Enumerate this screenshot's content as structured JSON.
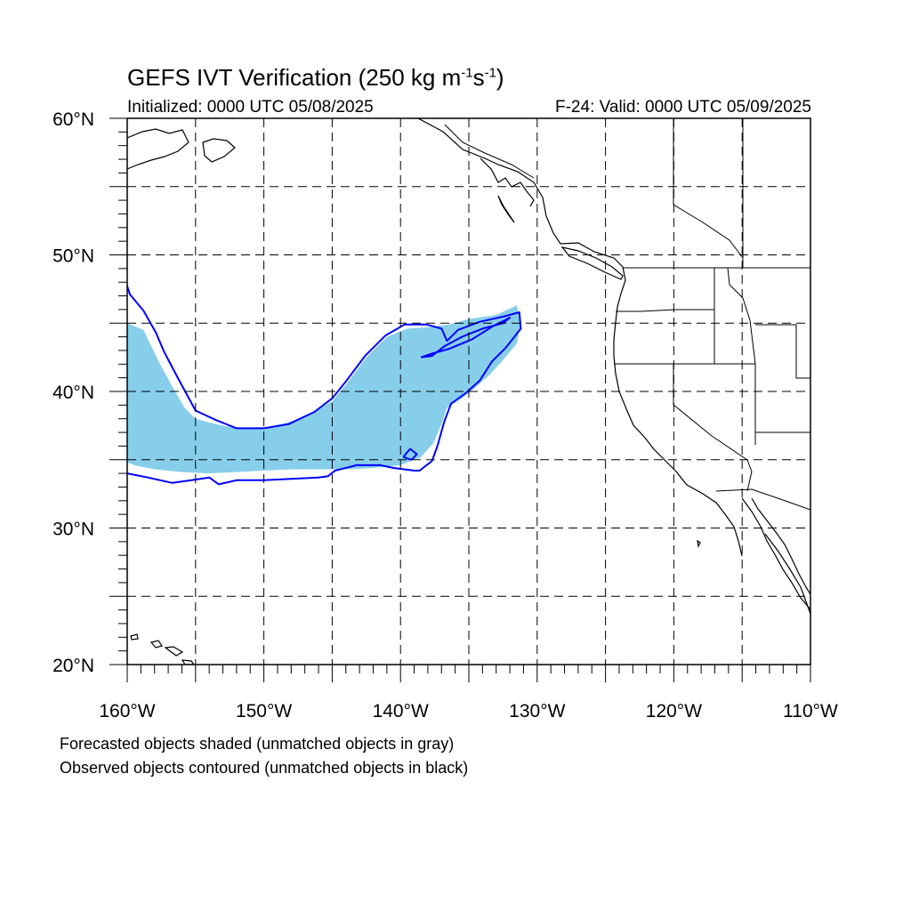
{
  "title": {
    "prefix": "GEFS IVT Verification (250 kg m",
    "exp1": "-1",
    "mid": "s",
    "exp2": "-1",
    "suffix": ")"
  },
  "initialized": "Initialized: 0000 UTC 05/08/2025",
  "valid": "F-24: Valid: 0000 UTC 05/09/2025",
  "notes": {
    "forecast": "Forecasted objects shaded (unmatched objects in gray)",
    "observed": "Observed objects contoured (unmatched objects in black)"
  },
  "map": {
    "lon_range": [
      -160,
      -110
    ],
    "lat_range": [
      20,
      60
    ],
    "lon_ticks": [
      "160°W",
      "150°W",
      "140°W",
      "130°W",
      "120°W",
      "110°W"
    ],
    "lat_ticks": [
      "20°N",
      "30°N",
      "40°N",
      "50°N",
      "60°N"
    ],
    "colors": {
      "forecast_fill": "#87ceeb",
      "observed_contour": "#0000ff",
      "coastline": "#000000",
      "grid": "#000000"
    }
  },
  "forecast_object": {
    "lons": [
      -160,
      -158.8,
      -157.6,
      -156.5,
      -155.8,
      -155,
      -153.5,
      -152,
      -150,
      -148,
      -146.3,
      -145,
      -144,
      -142.5,
      -141,
      -139.5,
      -138,
      -136.5,
      -135,
      -133,
      -131.5,
      -131.2,
      -131.5,
      -132.5,
      -133.5,
      -134.5,
      -135.5,
      -136.6,
      -137,
      -137.6,
      -138.5,
      -140,
      -142,
      -144,
      -146,
      -148,
      -150,
      -152,
      -154,
      -156,
      -158,
      -159.5,
      -160
    ],
    "lats": [
      45,
      44.5,
      42,
      40,
      38.8,
      38,
      37.6,
      37.3,
      37.3,
      37.8,
      38.5,
      39.3,
      40.5,
      42.5,
      44,
      44.6,
      44.7,
      44.9,
      45.3,
      45.6,
      46.3,
      45,
      43.5,
      42.3,
      41.2,
      40.3,
      39.5,
      38.8,
      37.6,
      36.2,
      35.2,
      34.6,
      34.4,
      34.3,
      34.3,
      34.3,
      34.2,
      34.1,
      34.0,
      34.1,
      34.3,
      34.6,
      34.8
    ]
  },
  "observed_contours": [
    {
      "name": "main",
      "lons": [
        -160,
        -159.8,
        -158.8,
        -157.9,
        -157.3,
        -156.3,
        -155,
        -153.5,
        -152,
        -150,
        -148.2,
        -146.3,
        -145,
        -144.1,
        -142.6,
        -141.1,
        -139.7,
        -138.1,
        -137,
        -136.6,
        -135.8,
        -134.2,
        -132.4,
        -131.3,
        -131.2,
        -132.3,
        -133.3,
        -134.2,
        -135.2,
        -136.3,
        -136.8,
        -137.3,
        -137.7,
        -138.1,
        -138.6,
        -139.0,
        -140.5,
        -141.5,
        -143.2,
        -144.8,
        -145.3,
        -146,
        -148,
        -150,
        -152,
        -153.3,
        -154,
        -155.3,
        -156.7,
        -158.5,
        -160
      ],
      "lats": [
        47.7,
        47.1,
        45.9,
        44.3,
        42.9,
        41.0,
        38.6,
        37.9,
        37.3,
        37.3,
        37.6,
        38.5,
        39.5,
        40.6,
        42.6,
        44.1,
        44.9,
        44.9,
        44.6,
        43.7,
        44.5,
        45.1,
        45.5,
        45.8,
        44.6,
        43.2,
        42.2,
        40.8,
        39.9,
        39.1,
        37.8,
        36.0,
        34.9,
        34.6,
        34.2,
        34.2,
        34.4,
        34.6,
        34.6,
        34.2,
        33.8,
        33.7,
        33.6,
        33.5,
        33.5,
        33.2,
        33.7,
        33.5,
        33.3,
        33.7,
        34.0
      ]
    },
    {
      "name": "inner-loop",
      "lons": [
        -138.5,
        -137.6,
        -136.5,
        -134.8,
        -133.2,
        -132.0,
        -132.5,
        -134.0,
        -135.5,
        -136.8,
        -137.7,
        -138.5
      ],
      "lats": [
        42.5,
        42.8,
        43.1,
        43.8,
        44.8,
        45.4,
        45.0,
        44.6,
        44.0,
        43.3,
        42.6,
        42.5
      ]
    },
    {
      "name": "small-loop",
      "lons": [
        -139.8,
        -139.3,
        -138.8,
        -139.2,
        -139.8
      ],
      "lats": [
        35.2,
        35.8,
        35.4,
        35.0,
        35.2
      ]
    }
  ]
}
